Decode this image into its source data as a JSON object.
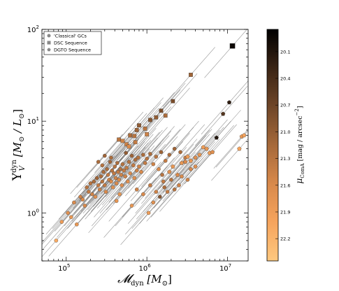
{
  "chart_data": {
    "type": "scatter",
    "xlabel": "𝓜dyn [M⊙]",
    "xlabel_parts": {
      "main": "𝓜",
      "sub": "dyn",
      "unit": "[M",
      "unit_sub": "⊙",
      "close": "]"
    },
    "ylabel_parts": {
      "main": "Υ",
      "sup": "dyn",
      "sub": "V",
      "unit": "[M",
      "unit_sub1": "⊙",
      "slash": " / L",
      "unit_sub2": "⊙",
      "close": "]"
    },
    "x_scale": "log",
    "y_scale": "log",
    "xlim": [
      50000,
      18000000
    ],
    "ylim": [
      0.3,
      100
    ],
    "x_ticks": [
      {
        "value": 100000,
        "base": "10",
        "exp": "5"
      },
      {
        "value": 1000000,
        "base": "10",
        "exp": "6"
      },
      {
        "value": 10000000,
        "base": "10",
        "exp": "7"
      }
    ],
    "y_ticks": [
      {
        "value": 1,
        "base": "10",
        "exp": "0"
      },
      {
        "value": 10,
        "base": "10",
        "exp": "1"
      },
      {
        "value": 100,
        "base": "10",
        "exp": "2"
      }
    ],
    "legend": {
      "placement": "top-left",
      "entries": [
        {
          "label": "'Classical' GCs",
          "marker": "circle"
        },
        {
          "label": "DSC Sequence",
          "marker": "square"
        },
        {
          "label": "DGTO Sequence",
          "marker": "pentagon"
        }
      ]
    },
    "colorbar": {
      "label_parts": {
        "mu": "μ",
        "sub": "ComA",
        "unit": "[mag / arcsec",
        "sup": "−2",
        "close": "]"
      },
      "range": [
        22.45,
        19.85
      ],
      "ticks": [
        "20.1",
        "20.4",
        "20.7",
        "21.0",
        "21.3",
        "21.6",
        "21.9",
        "22.2"
      ],
      "colors": [
        "#fec87f",
        "#f6a45d",
        "#d8894b",
        "#a6693a",
        "#6f4628",
        "#3a2415",
        "#000000"
      ]
    },
    "series": [
      {
        "name": "'Classical' GCs",
        "marker": "circle",
        "points": [
          [
            75000,
            0.5,
            22.1
          ],
          [
            88000,
            0.8,
            21.9
          ],
          [
            105000,
            1.0,
            21.7
          ],
          [
            115000,
            0.9,
            21.8
          ],
          [
            125000,
            1.3,
            21.6
          ],
          [
            135000,
            0.75,
            21.8
          ],
          [
            150000,
            1.5,
            21.5
          ],
          [
            160000,
            1.4,
            21.6
          ],
          [
            170000,
            1.2,
            21.6
          ],
          [
            180000,
            1.9,
            21.3
          ],
          [
            190000,
            1.7,
            21.4
          ],
          [
            200000,
            2.1,
            21.3
          ],
          [
            210000,
            1.6,
            21.5
          ],
          [
            220000,
            2.2,
            21.2
          ],
          [
            230000,
            1.5,
            21.7
          ],
          [
            240000,
            2.4,
            21.1
          ],
          [
            250000,
            2.0,
            21.4
          ],
          [
            260000,
            1.8,
            21.5
          ],
          [
            270000,
            2.5,
            21.2
          ],
          [
            280000,
            2.2,
            21.3
          ],
          [
            290000,
            2.8,
            21.2
          ],
          [
            300000,
            2.0,
            21.4
          ],
          [
            310000,
            1.7,
            21.6
          ],
          [
            320000,
            3.0,
            21.2
          ],
          [
            330000,
            2.6,
            21.4
          ],
          [
            340000,
            2.3,
            21.5
          ],
          [
            350000,
            3.6,
            21.1
          ],
          [
            360000,
            2.2,
            21.6
          ],
          [
            370000,
            2.9,
            21.3
          ],
          [
            380000,
            1.9,
            21.7
          ],
          [
            390000,
            2.7,
            21.4
          ],
          [
            400000,
            3.2,
            21.3
          ],
          [
            410000,
            2.4,
            21.5
          ],
          [
            420000,
            2.1,
            21.6
          ],
          [
            430000,
            3.5,
            21.2
          ],
          [
            440000,
            2.8,
            21.4
          ],
          [
            450000,
            2.3,
            21.6
          ],
          [
            460000,
            1.6,
            21.8
          ],
          [
            470000,
            3.0,
            21.3
          ],
          [
            480000,
            2.6,
            21.5
          ],
          [
            490000,
            2.0,
            21.7
          ],
          [
            500000,
            3.4,
            21.3
          ],
          [
            520000,
            2.9,
            21.4
          ],
          [
            540000,
            2.5,
            21.5
          ],
          [
            550000,
            4.5,
            21.0
          ],
          [
            560000,
            3.1,
            21.4
          ],
          [
            580000,
            2.2,
            21.7
          ],
          [
            600000,
            3.6,
            21.3
          ],
          [
            620000,
            2.7,
            21.6
          ],
          [
            650000,
            4.2,
            21.1
          ],
          [
            680000,
            3.3,
            21.4
          ],
          [
            700000,
            2.4,
            21.7
          ],
          [
            720000,
            3.8,
            21.2
          ],
          [
            750000,
            2.9,
            21.5
          ],
          [
            780000,
            4.0,
            21.3
          ],
          [
            800000,
            3.2,
            21.5
          ],
          [
            850000,
            2.8,
            21.6
          ],
          [
            900000,
            4.3,
            21.2
          ],
          [
            950000,
            3.5,
            21.4
          ],
          [
            1000000,
            3.9,
            21.3
          ],
          [
            1100000,
            4.4,
            21.2
          ],
          [
            1200000,
            3.4,
            21.5
          ],
          [
            1300000,
            4.1,
            21.3
          ],
          [
            1400000,
            3.0,
            21.6
          ],
          [
            1500000,
            4.6,
            21.1
          ],
          [
            1700000,
            3.7,
            21.4
          ],
          [
            1900000,
            4.3,
            21.2
          ],
          [
            2200000,
            5.0,
            21.1
          ],
          [
            2600000,
            4.6,
            21.2
          ],
          [
            3000000,
            4.0,
            21.4
          ],
          [
            420000,
            1.35,
            21.8
          ],
          [
            900000,
            1.6,
            21.6
          ],
          [
            1200000,
            1.3,
            21.7
          ],
          [
            1050000,
            1.0,
            21.9
          ],
          [
            650000,
            1.2,
            21.8
          ],
          [
            750000,
            1.8,
            21.5
          ],
          [
            1100000,
            2.0,
            21.4
          ],
          [
            1300000,
            1.7,
            21.5
          ],
          [
            1600000,
            2.2,
            21.4
          ],
          [
            1450000,
            1.5,
            20.9
          ],
          [
            1650000,
            1.9,
            21.2
          ],
          [
            2000000,
            2.3,
            21.3
          ],
          [
            1550000,
            2.6,
            21.3
          ],
          [
            1800000,
            1.7,
            21.4
          ],
          [
            2200000,
            1.8,
            21.3
          ],
          [
            2500000,
            2.0,
            21.5
          ],
          [
            2700000,
            2.5,
            21.6
          ],
          [
            3200000,
            2.3,
            21.5
          ],
          [
            3500000,
            3.0,
            21.6
          ],
          [
            4000000,
            3.2,
            21.7
          ],
          [
            360000,
            4.0,
            21.2
          ],
          [
            300000,
            4.2,
            21.1
          ],
          [
            280000,
            3.3,
            21.3
          ],
          [
            250000,
            3.6,
            21.2
          ]
        ]
      },
      {
        "name": "DSC Sequence",
        "marker": "square",
        "points": [
          [
            450000,
            6.3,
            21.3
          ],
          [
            500000,
            6.1,
            21.5
          ],
          [
            560000,
            5.6,
            21.5
          ],
          [
            620000,
            7.0,
            21.2
          ],
          [
            700000,
            6.9,
            21.3
          ],
          [
            750000,
            8.0,
            21.1
          ],
          [
            800000,
            9.0,
            21.0
          ],
          [
            950000,
            8.3,
            21.3
          ],
          [
            1000000,
            7.2,
            21.5
          ],
          [
            1100000,
            10.3,
            20.9
          ],
          [
            1300000,
            11.0,
            21.0
          ],
          [
            1500000,
            13.0,
            20.8
          ],
          [
            1700000,
            11.5,
            21.2
          ],
          [
            2100000,
            16.5,
            20.8
          ],
          [
            3500000,
            32.0,
            21.1
          ],
          [
            600000,
            5.3,
            21.6
          ],
          [
            720000,
            5.9,
            21.4
          ],
          [
            11500000,
            66.0,
            19.95
          ]
        ]
      },
      {
        "name": "DGTO Sequence",
        "marker": "pentagon",
        "points": [
          [
            2700000,
            3.5,
            21.8
          ],
          [
            3000000,
            3.6,
            21.6
          ],
          [
            3200000,
            4.1,
            21.9
          ],
          [
            3500000,
            3.7,
            21.8
          ],
          [
            4000000,
            4.0,
            21.7
          ],
          [
            4500000,
            4.3,
            21.8
          ],
          [
            5000000,
            5.2,
            21.9
          ],
          [
            5500000,
            5.0,
            21.8
          ],
          [
            6000000,
            4.5,
            21.9
          ],
          [
            6500000,
            4.6,
            21.7
          ],
          [
            2400000,
            2.6,
            21.6
          ],
          [
            1900000,
            2.8,
            21.7
          ],
          [
            7300000,
            6.6,
            20.1
          ],
          [
            15000000,
            6.8,
            21.9
          ],
          [
            16000000,
            7.0,
            22.0
          ],
          [
            14000000,
            5.0,
            22.0
          ],
          [
            2100000,
            3.2,
            21.8
          ],
          [
            10500000,
            16.0,
            20.2
          ],
          [
            8800000,
            12.0,
            20.5
          ]
        ]
      }
    ]
  }
}
